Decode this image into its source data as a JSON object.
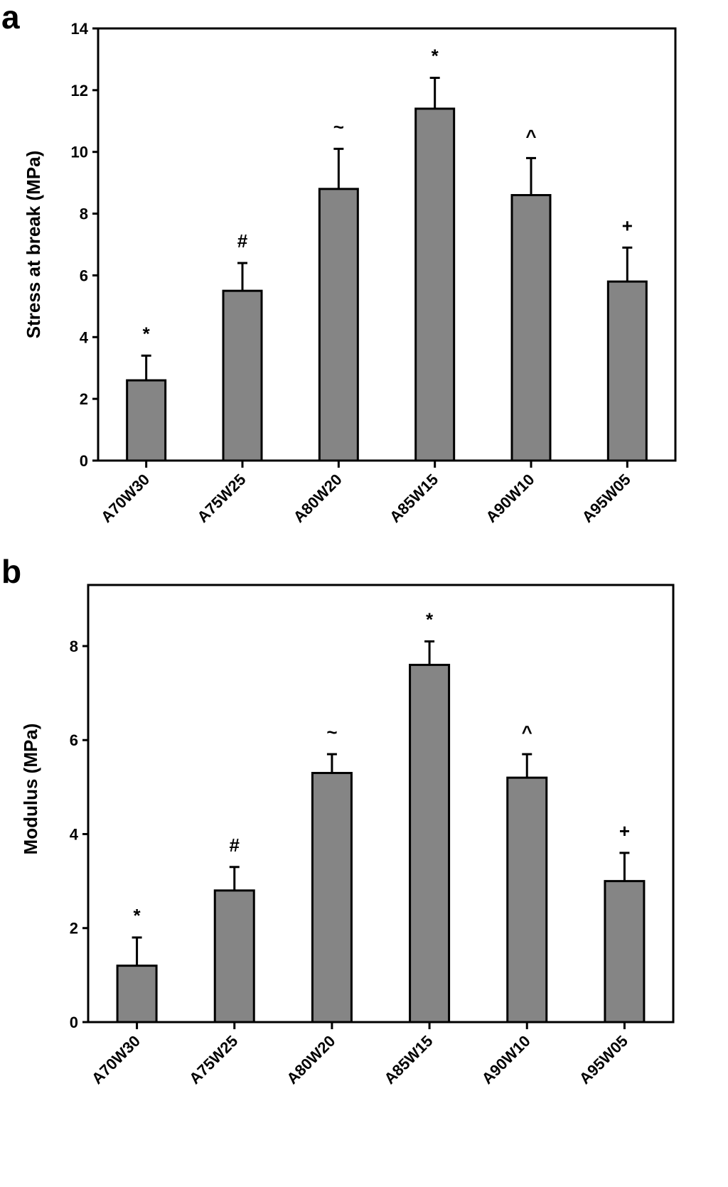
{
  "colors": {
    "bar": "#858585",
    "axis": "#000000",
    "background": "#ffffff"
  },
  "chart_data": [
    {
      "panel_label": "a",
      "type": "bar",
      "title": "",
      "xlabel": "",
      "ylabel": "Stress at break (MPa)",
      "categories": [
        "A70W30",
        "A75W25",
        "A80W20",
        "A85W15",
        "A90W10",
        "A95W05"
      ],
      "values": [
        2.6,
        5.5,
        8.8,
        11.4,
        8.6,
        5.8
      ],
      "errors": [
        0.8,
        0.9,
        1.3,
        1.0,
        1.2,
        1.1
      ],
      "annotations": [
        "*",
        "#",
        "~",
        "*",
        "^",
        "+"
      ],
      "ylim": [
        0,
        14
      ],
      "yticks": [
        0,
        2,
        4,
        6,
        8,
        10,
        12,
        14
      ],
      "grid": false,
      "legend": false
    },
    {
      "panel_label": "b",
      "type": "bar",
      "title": "",
      "xlabel": "",
      "ylabel": "Modulus (MPa)",
      "categories": [
        "A70W30",
        "A75W25",
        "A80W20",
        "A85W15",
        "A90W10",
        "A95W05"
      ],
      "values": [
        1.2,
        2.8,
        5.3,
        7.6,
        5.2,
        3.0
      ],
      "errors": [
        0.6,
        0.5,
        0.4,
        0.5,
        0.5,
        0.6
      ],
      "annotations": [
        "*",
        "#",
        "~",
        "*",
        "^",
        "+"
      ],
      "ylim": [
        0,
        9.3
      ],
      "yticks": [
        0,
        2,
        4,
        6,
        8
      ],
      "grid": false,
      "legend": false
    }
  ]
}
